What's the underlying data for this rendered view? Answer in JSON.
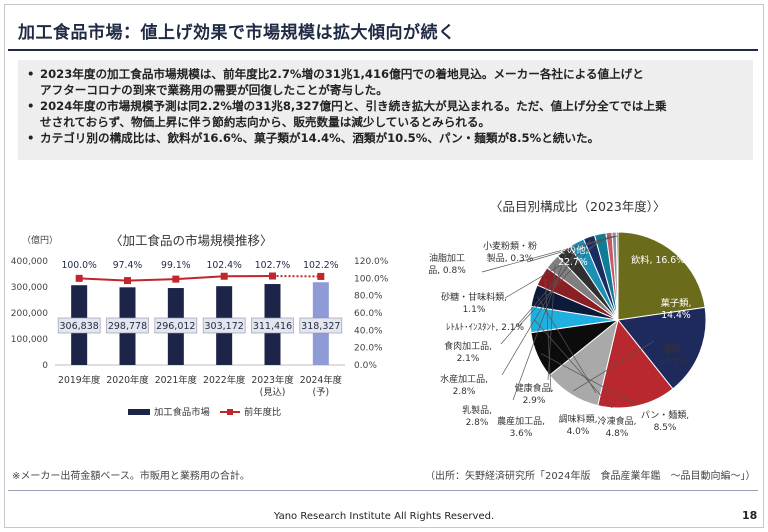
{
  "page": {
    "title": "加工食品市場：値上げ効果で市場規模は拡大傾向が続く",
    "bullets": [
      "2023年度の加工食品市場規模は、前年度比2.7%増の31兆1,416億円での着地見込。メーカー各社による値上げと",
      "アフターコロナの到来で業務用の需要が回復したことが寄与した。",
      "2024年度の市場規模予測は同2.2%増の31兆8,327億円と、引き続き拡大が見込まれる。ただ、値上げ分全てでは上乗",
      "せされておらず、物価上昇に伴う節約志向から、販売数量は減少しているとみられる。",
      "カテゴリ別の構成比は、飲料が16.6%、菓子類が14.4%、酒類が10.5%、パン・麺類が8.5%と続いた。"
    ],
    "left_subtitle": "〈加工食品の市場規模推移〉",
    "right_subtitle": "〈品目別構成比（2023年度）〉",
    "footnote": "※メーカー出荷金額ベース。市販用と業務用の合計。",
    "source": "（出所：矢野経済研究所「2024年版　食品産業年鑑　～品目動向編～」）",
    "footer": "Yano Research Institute All Rights Reserved.",
    "page_number": "18"
  },
  "colors": {
    "bar_actual": "#1c2448",
    "bar_forecast": "#8e9bd6",
    "line": "#c0262c",
    "title": "#1f2a44"
  },
  "chart_data": [
    {
      "type": "bar",
      "unit_label": "（億円）",
      "categories": [
        "2019年度",
        "2020年度",
        "2021年度",
        "2022年度",
        "2023年度\n(見込)",
        "2024年度\n(予)"
      ],
      "series": [
        {
          "name": "加工食品市場",
          "values": [
            306838,
            298778,
            296012,
            303172,
            311416,
            318327
          ],
          "value_labels": [
            "306,838",
            "298,778",
            "296,012",
            "303,172",
            "311,416",
            "318,327"
          ]
        },
        {
          "name": "前年度比",
          "axis": "right",
          "values": [
            100.0,
            97.4,
            99.1,
            102.4,
            102.7,
            102.2
          ],
          "value_labels": [
            "100.0%",
            "97.4%",
            "99.1%",
            "102.4%",
            "102.7%",
            "102.2%"
          ]
        }
      ],
      "forecast_index": 5,
      "ylim": [
        0,
        400000
      ],
      "yticks": [
        "0",
        "100,000",
        "200,000",
        "300,000",
        "400,000"
      ],
      "y2lim": [
        0,
        120
      ],
      "y2ticks": [
        "0.0%",
        "20.0%",
        "40.0%",
        "60.0%",
        "80.0%",
        "100.0%",
        "120.0%"
      ],
      "legend_position": "bottom"
    },
    {
      "type": "pie",
      "labels": [
        "飲料",
        "菓子類",
        "酒類",
        "パン・麺類",
        "冷凍食品",
        "調味料類",
        "農産加工品",
        "健康食品",
        "乳製品",
        "水産加工品",
        "食肉加工品",
        "ﾚﾄﾙﾄ･ｲﾝｽﾀﾝﾄ",
        "砂糖・甘味料類",
        "油脂加工品",
        "小麦粉類・粉製品",
        "その他"
      ],
      "values": [
        16.6,
        14.4,
        10.5,
        8.5,
        4.8,
        4.0,
        3.6,
        2.9,
        2.8,
        2.8,
        2.1,
        2.1,
        1.1,
        0.8,
        0.3,
        22.7
      ],
      "label_texts": [
        "飲料, 16.6%",
        "菓子類,\n14.4%",
        "酒類,\n10.5%",
        "パン・麺類,\n8.5%",
        "冷凍食品,\n4.8%",
        "調味料類,\n4.0%",
        "農産加工品,\n3.6%",
        "健康食品,\n2.9%",
        "乳製品,\n2.8%",
        "水産加工品,\n2.8%",
        "食肉加工品,\n2.1%",
        "ﾚﾄﾙﾄ･ｲﾝｽﾀﾝﾄ, 2.1%",
        "砂糖・甘味料類,\n1.1%",
        "油脂加工\n品, 0.8%",
        "小麦粉類・粉\n製品, 0.3%",
        "その他,\n22.7%"
      ],
      "colors": [
        "#1f2a5c",
        "#b8282e",
        "#a9a9a9",
        "#0c0c0c",
        "#1fb0e0",
        "#0e1a3a",
        "#8a1f25",
        "#7f7f7f",
        "#303030",
        "#1c8fb5",
        "#1a2d63",
        "#0f7d98",
        "#c85a64",
        "#8a8fa3",
        "#555555",
        "#6b6b1c"
      ]
    }
  ]
}
